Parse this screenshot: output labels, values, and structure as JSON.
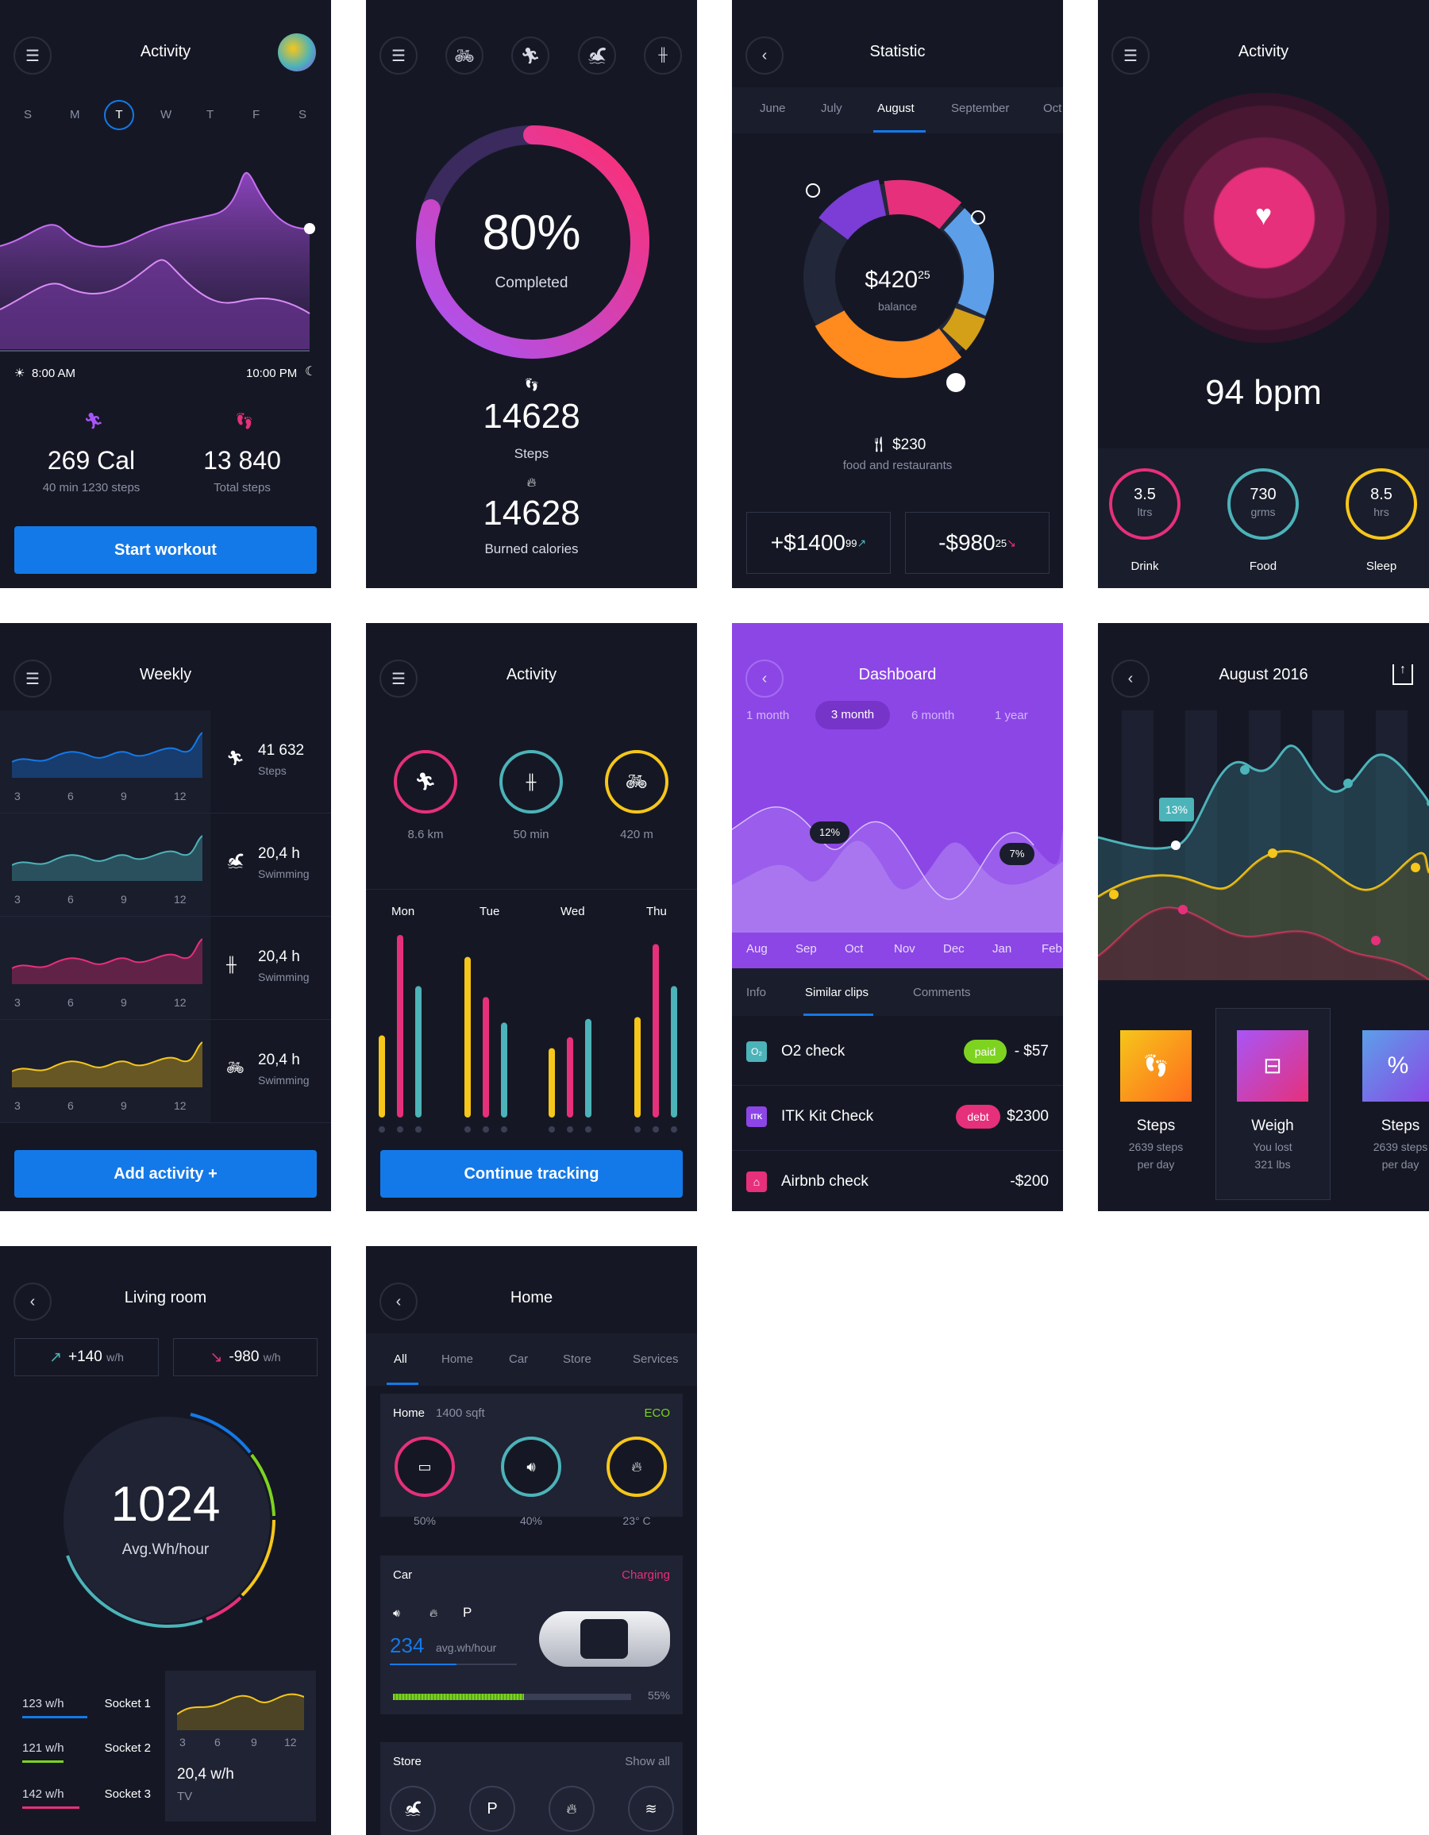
{
  "colors": {
    "accent": "#1479e8",
    "bg": "#151824",
    "pink": "#e6307b",
    "teal": "#4cb3b9",
    "yellow": "#f6c61a",
    "purple": "#8c46e6",
    "green": "#7ed321"
  },
  "s1": {
    "title": "Activity",
    "days": [
      "S",
      "M",
      "T",
      "W",
      "T",
      "F",
      "S"
    ],
    "start_time": "8:00 AM",
    "end_time": "10:00 PM",
    "cal": "269 Cal",
    "cal_sub": "40 min 1230 steps",
    "steps": "13 840",
    "steps_sub": "Total steps",
    "button": "Start workout"
  },
  "s2": {
    "percent": "80%",
    "percent_label": "Completed",
    "steps": "14628",
    "steps_label": "Steps",
    "cal": "14628",
    "cal_label": "Burned calories",
    "progress": 0.8
  },
  "s3": {
    "title": "Statistic",
    "months": [
      "June",
      "July",
      "August",
      "September",
      "Oct"
    ],
    "balance": "$420",
    "balance_cents": "25",
    "balance_label": "balance",
    "amount": "$230",
    "amount_label": "food and restaurants",
    "plus": "+$1400",
    "plus_cents": "99",
    "minus": "-$980",
    "minus_cents": "25"
  },
  "s4": {
    "title": "Activity",
    "bpm": "94 bpm",
    "stats": [
      {
        "value": "3.5",
        "unit": "ltrs",
        "label": "Drink"
      },
      {
        "value": "730",
        "unit": "grms",
        "label": "Food"
      },
      {
        "value": "8.5",
        "unit": "hrs",
        "label": "Sleep"
      }
    ]
  },
  "s5": {
    "title": "Weekly",
    "ticks": [
      "3",
      "6",
      "9",
      "12"
    ],
    "rows": [
      {
        "value": "41 632",
        "label": "Steps"
      },
      {
        "value": "20,4 h",
        "label": "Swimming"
      },
      {
        "value": "20,4 h",
        "label": "Swimming"
      },
      {
        "value": "20,4 h",
        "label": "Swimming"
      }
    ],
    "button": "Add activity +"
  },
  "s6": {
    "title": "Activity",
    "rings": [
      {
        "label": "8.6 km"
      },
      {
        "label": "50 min"
      },
      {
        "label": "420 m"
      }
    ],
    "days": [
      "Mon",
      "Tue",
      "Wed",
      "Thu"
    ],
    "button": "Continue tracking"
  },
  "s7": {
    "title": "Dashboard",
    "ranges": [
      "1 month",
      "3 month",
      "6 month",
      "1 year"
    ],
    "tag1": "12%",
    "tag2": "7%",
    "months": [
      "Aug",
      "Sep",
      "Oct",
      "Nov",
      "Dec",
      "Jan",
      "Feb"
    ],
    "tabs": [
      "Info",
      "Similar clips",
      "Comments"
    ],
    "rows": [
      {
        "name": "O2 check",
        "badge": "paid",
        "amount": "- $57"
      },
      {
        "name": "ITK Kit Check",
        "badge": "debt",
        "amount": "$2300"
      },
      {
        "name": "Airbnb check",
        "badge": "",
        "amount": "-$200"
      }
    ]
  },
  "s8": {
    "title": "August 2016",
    "tag": "13%",
    "tiles": [
      {
        "title": "Steps",
        "sub1": "2639 steps",
        "sub2": "per day"
      },
      {
        "title": "Weigh",
        "sub1": "You lost",
        "sub2": "321 lbs"
      },
      {
        "title": "Steps",
        "sub1": "2639 steps",
        "sub2": "per day"
      }
    ]
  },
  "s9": {
    "title": "Living room",
    "plus": "+140",
    "minus": "-980",
    "unit": "w/h",
    "value": "1024",
    "value_label": "Avg.Wh/hour",
    "sockets": [
      {
        "value": "123 w/h",
        "name": "Socket 1"
      },
      {
        "value": "121 w/h",
        "name": "Socket 2"
      },
      {
        "value": "142 w/h",
        "name": "Socket 3"
      }
    ],
    "ticks": [
      "3",
      "6",
      "9",
      "12"
    ],
    "tv_value": "20,4 w/h",
    "tv_label": "TV"
  },
  "s10": {
    "title": "Home",
    "tabs": [
      "All",
      "Home",
      "Car",
      "Store",
      "Services"
    ],
    "home_label": "Home",
    "home_size": "1400 sqft",
    "eco": "ECO",
    "gauges": [
      {
        "label": "50%"
      },
      {
        "label": "40%"
      },
      {
        "label": "23° C"
      }
    ],
    "car_label": "Car",
    "charging": "Charging",
    "p": "P",
    "car_value": "234",
    "car_unit": "avg.wh/hour",
    "charge": "55%",
    "store_label": "Store",
    "show_all": "Show all"
  }
}
